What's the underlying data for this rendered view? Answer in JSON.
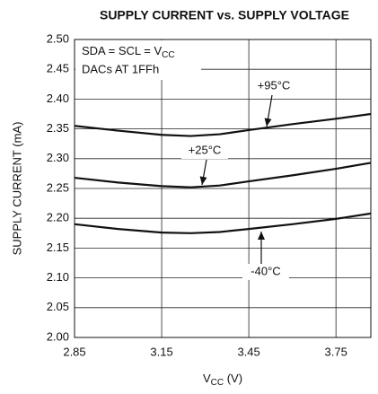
{
  "chart_data": {
    "type": "line",
    "title": "SUPPLY CURRENT vs. SUPPLY VOLTAGE",
    "x_label": {
      "text": "V",
      "sub": "CC",
      "rest": " (V)"
    },
    "y_label": "SUPPLY CURRENT (mA)",
    "annotations": [
      {
        "text": "SDA = SCL = V",
        "sub": "CC"
      },
      {
        "text": "DACs AT 1FFh"
      }
    ],
    "x": [
      2.85,
      3.0,
      3.15,
      3.25,
      3.35,
      3.45,
      3.6,
      3.75,
      3.87
    ],
    "series": [
      {
        "name": "+95°C",
        "color": "#111111",
        "values": [
          2.355,
          2.347,
          2.34,
          2.338,
          2.341,
          2.348,
          2.358,
          2.367,
          2.375
        ]
      },
      {
        "name": "+25°C",
        "color": "#111111",
        "values": [
          2.268,
          2.26,
          2.254,
          2.252,
          2.255,
          2.262,
          2.272,
          2.283,
          2.293
        ]
      },
      {
        "name": "-40°C",
        "color": "#111111",
        "values": [
          2.19,
          2.182,
          2.176,
          2.175,
          2.177,
          2.182,
          2.19,
          2.199,
          2.208
        ]
      }
    ],
    "xlim": [
      2.85,
      3.87
    ],
    "xticks": [
      2.85,
      3.15,
      3.45,
      3.75
    ],
    "ylim": [
      2.0,
      2.5
    ],
    "yticks": [
      {
        "value": 2.0,
        "label": "2.00"
      },
      2.05,
      {
        "value": 2.1,
        "label": "2.10"
      },
      2.15,
      {
        "value": 2.2,
        "label": "2.20"
      },
      2.25,
      {
        "value": 2.3,
        "label": "2.30"
      },
      2.35,
      {
        "value": 2.4,
        "label": "2.40"
      },
      2.45,
      {
        "value": 2.5,
        "label": "2.50"
      }
    ],
    "grid": true
  }
}
